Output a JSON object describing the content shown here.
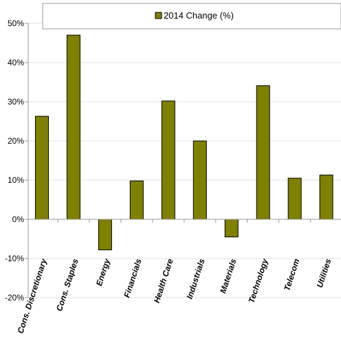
{
  "chart_data": {
    "type": "bar",
    "categories": [
      "Cons. Discretionary",
      "Cons. Staples",
      "Energy",
      "Financials",
      "Health Care",
      "Industrials",
      "Materials",
      "Technology",
      "Telecom",
      "Utilities"
    ],
    "series": [
      {
        "name": "2014 Change (%)",
        "values": [
          26.3,
          47.0,
          -7.8,
          9.8,
          30.2,
          20.0,
          -4.5,
          34.1,
          10.5,
          11.3
        ]
      }
    ],
    "ylim": [
      -20,
      50
    ],
    "yticks": [
      -20,
      -10,
      0,
      10,
      20,
      30,
      40,
      50
    ],
    "ytick_labels": [
      "-20%",
      "-10%",
      "0%",
      "10%",
      "20%",
      "30%",
      "40%",
      "50%"
    ],
    "grid": true,
    "legend_position": "top",
    "colors": {
      "bar": "#808000",
      "bar_border": "#000000",
      "grid": "#e0e0e0",
      "axis": "#999999"
    }
  }
}
